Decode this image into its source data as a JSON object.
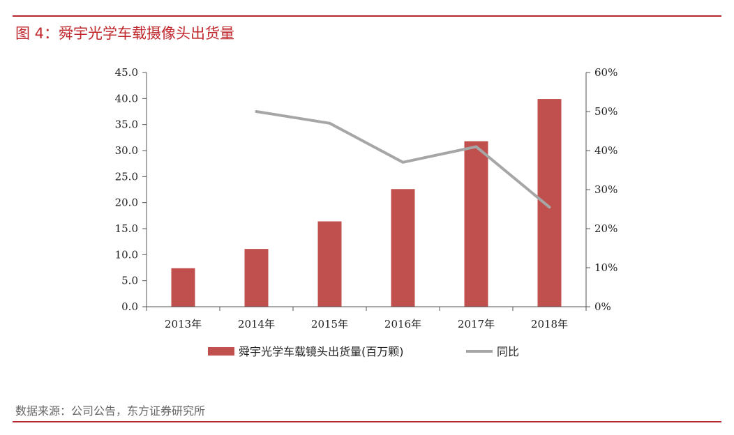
{
  "figure_title": "图 4：舜宇光学车载摄像头出货量",
  "source": "数据来源：公司公告，东方证券研究所",
  "colors": {
    "bar": "#c0504d",
    "line": "#a6a6a6",
    "accent": "#b5272d",
    "axis": "#555555"
  },
  "chart_data": {
    "type": "bar",
    "categories": [
      "2013年",
      "2014年",
      "2015年",
      "2016年",
      "2017年",
      "2018年"
    ],
    "series": [
      {
        "name": "舜宇光学车载镜头出货量(百万颗)",
        "type": "bar",
        "axis": "left",
        "values": [
          7.4,
          11.1,
          16.4,
          22.6,
          31.8,
          39.9
        ]
      },
      {
        "name": "同比",
        "type": "line",
        "axis": "right",
        "values": [
          null,
          0.5,
          0.47,
          0.37,
          0.41,
          0.255
        ]
      }
    ],
    "y_left": {
      "ylim": [
        0,
        45
      ],
      "ticks": [
        "0.0",
        "5.0",
        "10.0",
        "15.0",
        "20.0",
        "25.0",
        "30.0",
        "35.0",
        "40.0",
        "45.0"
      ]
    },
    "y_right": {
      "ylim": [
        0,
        0.6
      ],
      "ticks": [
        "0%",
        "10%",
        "20%",
        "30%",
        "40%",
        "50%",
        "60%"
      ]
    },
    "legend_position": "bottom",
    "grid": false
  }
}
